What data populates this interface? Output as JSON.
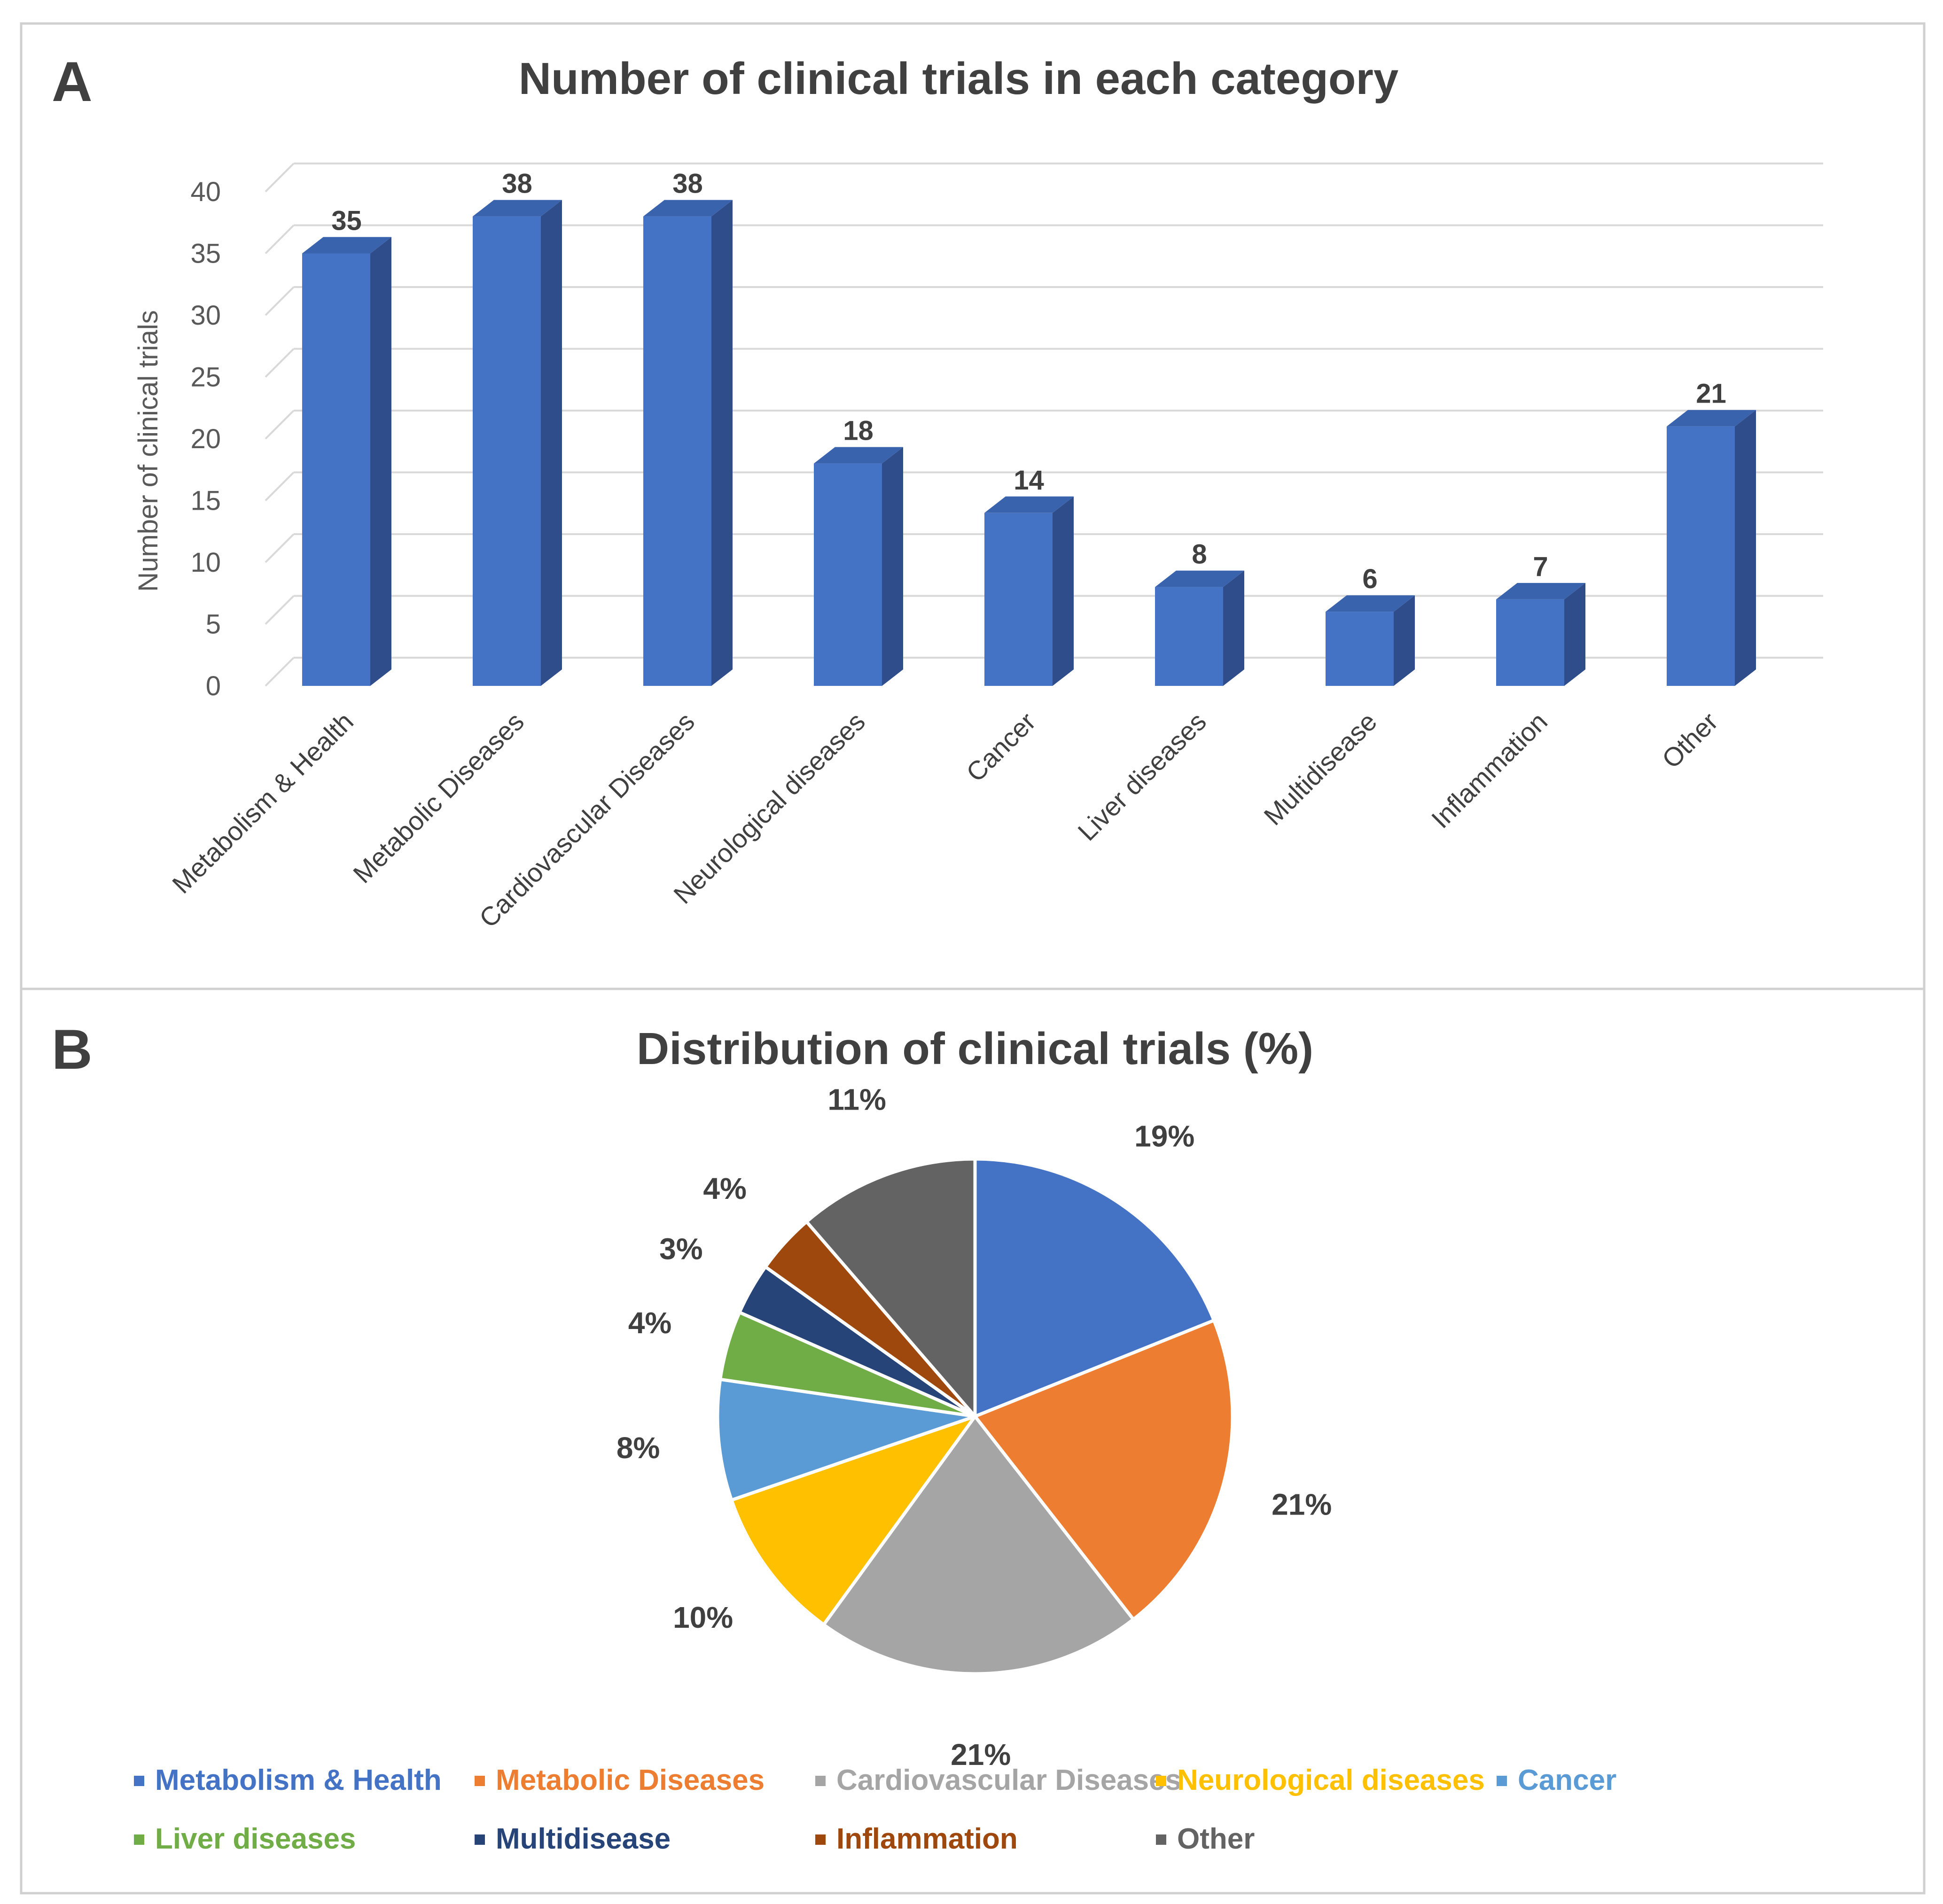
{
  "panel_a_label": "A",
  "panel_b_label": "B",
  "chart_data": [
    {
      "type": "bar",
      "title": "Number of clinical trials in each category",
      "xlabel": "",
      "ylabel": "Number of clinical  trials",
      "ylim": [
        0,
        40
      ],
      "yticks": [
        0,
        5,
        10,
        15,
        20,
        25,
        30,
        35,
        40
      ],
      "grid": true,
      "categories": [
        "Metabolism & Health",
        "Metabolic Diseases",
        "Cardiovascular Diseases",
        "Neurological diseases",
        "Cancer",
        "Liver diseases",
        "Multidisease",
        "Inflammation",
        "Other"
      ],
      "values": [
        35,
        38,
        38,
        18,
        14,
        8,
        6,
        7,
        21
      ],
      "bar_color": "#4472C4",
      "bar_side_color": "#2F4D8A",
      "bar_top_color": "#3A63AE"
    },
    {
      "type": "pie",
      "title": "Distribution of clinical trials (%)",
      "categories": [
        "Metabolism & Health",
        "Metabolic Diseases",
        "Cardiovascular Diseases",
        "Neurological diseases",
        "Cancer",
        "Liver diseases",
        "Multidisease",
        "Inflammation",
        "Other"
      ],
      "values": [
        35,
        38,
        38,
        18,
        14,
        8,
        6,
        7,
        21
      ],
      "labels": [
        "19%",
        "21%",
        "21%",
        "10%",
        "8%",
        "4%",
        "3%",
        "4%",
        "11%"
      ],
      "colors": [
        "#4472C4",
        "#ED7D31",
        "#A5A5A5",
        "#FFC000",
        "#5B9BD5",
        "#70AD47",
        "#264478",
        "#9E480E",
        "#636363"
      ],
      "legend_position": "bottom"
    }
  ]
}
